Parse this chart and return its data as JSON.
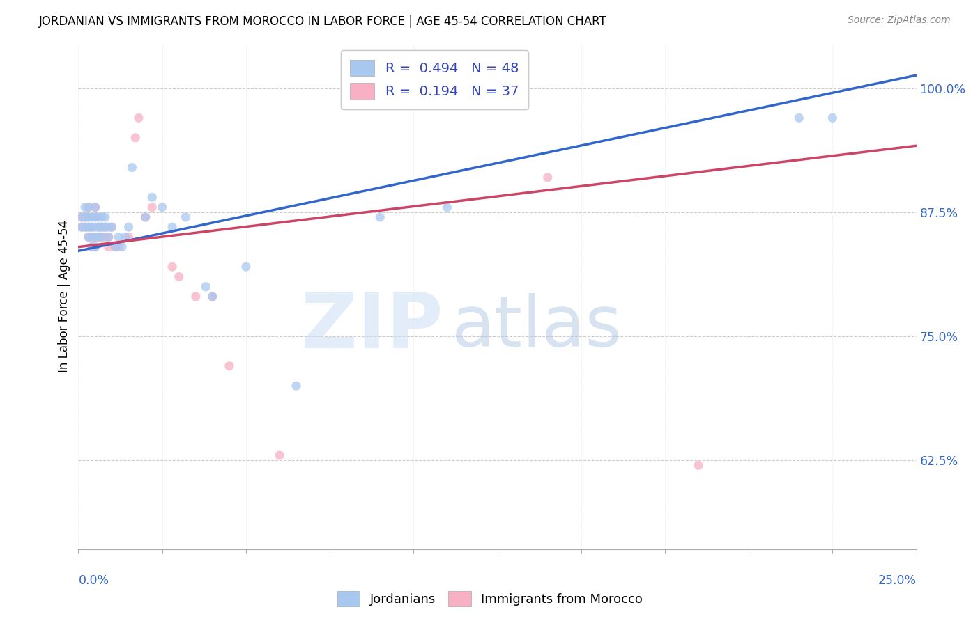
{
  "title": "JORDANIAN VS IMMIGRANTS FROM MOROCCO IN LABOR FORCE | AGE 45-54 CORRELATION CHART",
  "source": "Source: ZipAtlas.com",
  "ylabel": "In Labor Force | Age 45-54",
  "xmin": 0.0,
  "xmax": 0.25,
  "ymin": 0.535,
  "ymax": 1.045,
  "r_blue": 0.494,
  "n_blue": 48,
  "r_pink": 0.194,
  "n_pink": 37,
  "blue_color": "#a8c8f0",
  "pink_color": "#f8b0c4",
  "blue_line_color": "#3366cc",
  "pink_line_color": "#cc4466",
  "legend_label_blue": "Jordanians",
  "legend_label_pink": "Immigrants from Morocco",
  "blue_line_x0": 0.0,
  "blue_line_y0": 0.836,
  "blue_line_x1": 0.25,
  "blue_line_y1": 1.013,
  "pink_line_x0": 0.0,
  "pink_line_y0": 0.84,
  "pink_line_x1": 0.25,
  "pink_line_y1": 0.942,
  "yticks": [
    0.625,
    0.75,
    0.875,
    1.0
  ],
  "ytick_labels": [
    "62.5%",
    "75.0%",
    "87.5%",
    "100.0%"
  ],
  "blue_x": [
    0.001,
    0.001,
    0.002,
    0.002,
    0.002,
    0.003,
    0.003,
    0.003,
    0.003,
    0.004,
    0.004,
    0.004,
    0.004,
    0.005,
    0.005,
    0.005,
    0.005,
    0.005,
    0.006,
    0.006,
    0.006,
    0.007,
    0.007,
    0.007,
    0.008,
    0.008,
    0.009,
    0.009,
    0.01,
    0.011,
    0.012,
    0.013,
    0.014,
    0.015,
    0.016,
    0.02,
    0.022,
    0.025,
    0.028,
    0.032,
    0.038,
    0.04,
    0.05,
    0.065,
    0.09,
    0.11,
    0.215,
    0.225
  ],
  "blue_y": [
    0.86,
    0.87,
    0.86,
    0.87,
    0.88,
    0.85,
    0.86,
    0.87,
    0.88,
    0.84,
    0.85,
    0.86,
    0.87,
    0.84,
    0.85,
    0.86,
    0.87,
    0.88,
    0.85,
    0.86,
    0.87,
    0.85,
    0.86,
    0.87,
    0.86,
    0.87,
    0.85,
    0.86,
    0.86,
    0.84,
    0.85,
    0.84,
    0.85,
    0.86,
    0.92,
    0.87,
    0.89,
    0.88,
    0.86,
    0.87,
    0.8,
    0.79,
    0.82,
    0.7,
    0.87,
    0.88,
    0.97,
    0.97
  ],
  "pink_x": [
    0.001,
    0.001,
    0.002,
    0.002,
    0.003,
    0.003,
    0.003,
    0.003,
    0.004,
    0.004,
    0.004,
    0.005,
    0.005,
    0.005,
    0.005,
    0.006,
    0.006,
    0.007,
    0.007,
    0.008,
    0.008,
    0.009,
    0.009,
    0.01,
    0.011,
    0.012,
    0.015,
    0.017,
    0.018,
    0.02,
    0.022,
    0.028,
    0.03,
    0.035,
    0.04,
    0.045,
    0.06,
    0.14,
    0.185
  ],
  "pink_y": [
    0.86,
    0.87,
    0.86,
    0.87,
    0.85,
    0.86,
    0.87,
    0.88,
    0.84,
    0.85,
    0.86,
    0.84,
    0.85,
    0.87,
    0.88,
    0.85,
    0.86,
    0.85,
    0.86,
    0.85,
    0.86,
    0.84,
    0.85,
    0.86,
    0.84,
    0.84,
    0.85,
    0.95,
    0.97,
    0.87,
    0.88,
    0.82,
    0.81,
    0.79,
    0.79,
    0.72,
    0.63,
    0.91,
    0.62
  ]
}
